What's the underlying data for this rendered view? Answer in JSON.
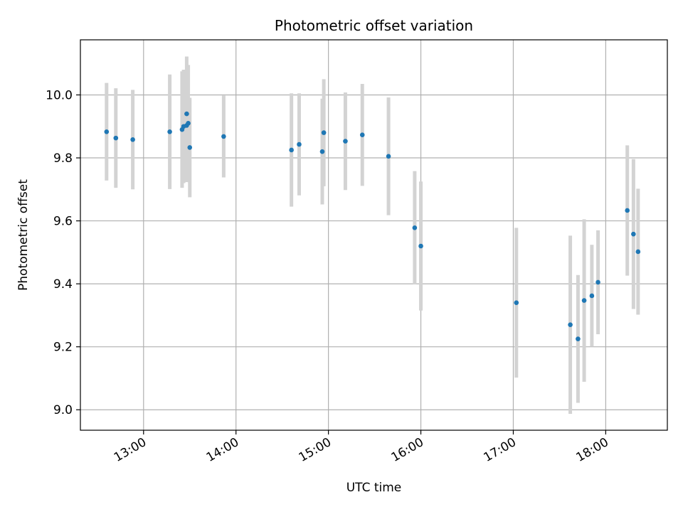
{
  "chart_data": {
    "type": "scatter",
    "title": "Photometric offset variation",
    "xlabel": "UTC time",
    "ylabel": "Photometric offset",
    "x_axis_kind": "time",
    "xlim": [
      "12:19",
      "18:40"
    ],
    "ylim": [
      8.935,
      10.175
    ],
    "x_ticks": [
      "13:00",
      "14:00",
      "15:00",
      "16:00",
      "17:00",
      "18:00"
    ],
    "y_ticks": [
      9.0,
      9.2,
      9.4,
      9.6,
      9.8,
      10.0
    ],
    "y_tick_labels": [
      "9.0",
      "9.2",
      "9.4",
      "9.6",
      "9.8",
      "10.0"
    ],
    "grid": true,
    "legend": false,
    "colors": {
      "points": "#1f77b4",
      "error_bars": "#d3d3d3",
      "grid": "#b0b0b0"
    },
    "series": [
      {
        "points": [
          {
            "x": "12:36",
            "y": 9.883,
            "yerr": 0.155
          },
          {
            "x": "12:42",
            "y": 9.863,
            "yerr": 0.158
          },
          {
            "x": "12:53",
            "y": 9.858,
            "yerr": 0.158
          },
          {
            "x": "13:17",
            "y": 9.883,
            "yerr": 0.182
          },
          {
            "x": "13:25",
            "y": 9.89,
            "yerr": 0.185
          },
          {
            "x": "13:26",
            "y": 9.9,
            "yerr": 0.18
          },
          {
            "x": "13:28",
            "y": 9.94,
            "yerr": 0.182
          },
          {
            "x": "13:28",
            "y": 9.903,
            "yerr": 0.18
          },
          {
            "x": "13:29",
            "y": 9.91,
            "yerr": 0.185
          },
          {
            "x": "13:30",
            "y": 9.833,
            "yerr": 0.158
          },
          {
            "x": "13:52",
            "y": 9.868,
            "yerr": 0.13
          },
          {
            "x": "14:36",
            "y": 9.825,
            "yerr": 0.18
          },
          {
            "x": "14:41",
            "y": 9.843,
            "yerr": 0.162
          },
          {
            "x": "14:56",
            "y": 9.82,
            "yerr": 0.168
          },
          {
            "x": "14:57",
            "y": 9.88,
            "yerr": 0.17
          },
          {
            "x": "15:11",
            "y": 9.853,
            "yerr": 0.155
          },
          {
            "x": "15:22",
            "y": 9.873,
            "yerr": 0.162
          },
          {
            "x": "15:39",
            "y": 9.805,
            "yerr": 0.187
          },
          {
            "x": "15:56",
            "y": 9.578,
            "yerr": 0.18
          },
          {
            "x": "16:00",
            "y": 9.52,
            "yerr": 0.205
          },
          {
            "x": "17:02",
            "y": 9.34,
            "yerr": 0.238
          },
          {
            "x": "17:37",
            "y": 9.27,
            "yerr": 0.283
          },
          {
            "x": "17:42",
            "y": 9.225,
            "yerr": 0.203
          },
          {
            "x": "17:46",
            "y": 9.347,
            "yerr": 0.258
          },
          {
            "x": "17:51",
            "y": 9.362,
            "yerr": 0.162
          },
          {
            "x": "17:55",
            "y": 9.405,
            "yerr": 0.165
          },
          {
            "x": "18:14",
            "y": 9.633,
            "yerr": 0.207
          },
          {
            "x": "18:18",
            "y": 9.558,
            "yerr": 0.238
          },
          {
            "x": "18:21",
            "y": 9.502,
            "yerr": 0.2
          }
        ]
      }
    ]
  }
}
